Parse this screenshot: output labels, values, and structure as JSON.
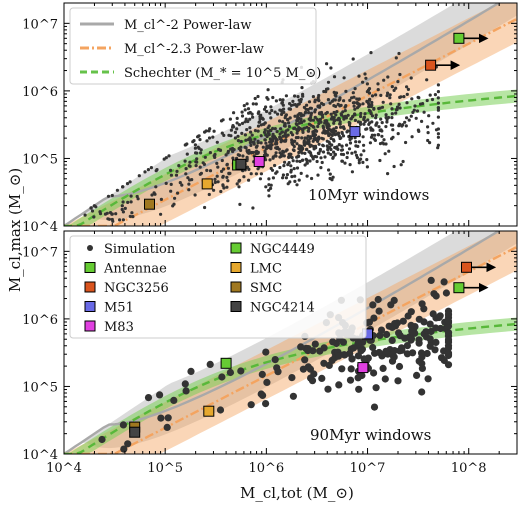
{
  "figure": {
    "xlabel": "M_cl,tot (M_⊙)",
    "ylabel": "M_cl,max (M_⊙)"
  },
  "chart_data": [
    {
      "type": "scatter",
      "annotation": "10Myr windows",
      "xscale": "log",
      "yscale": "log",
      "xlim": [
        10000,
        300000000
      ],
      "ylim": [
        10000,
        20000000
      ],
      "x_ticks": [
        "10^4",
        "10^5",
        "10^6",
        "10^7",
        "10^8"
      ],
      "y_ticks": [
        "10^4",
        "10^5",
        "10^6",
        "10^7"
      ],
      "legend": [
        {
          "name": "M_cl^-2 Power-law",
          "style": "solid",
          "color": "#a9a9a9"
        },
        {
          "name": "M_cl^-2.3 Power-law",
          "style": "dashdot",
          "color": "#f4a460"
        },
        {
          "name": "Schechter (M_* = 10^5 M_⊙)",
          "style": "dashed",
          "color": "#66c24a"
        }
      ],
      "legend_position": "top-left",
      "galaxies": [
        {
          "name": "Antennae",
          "x": 80000000,
          "y": 6000000,
          "color": "#66cc33",
          "arrow": true
        },
        {
          "name": "NGC3256",
          "x": 42000000,
          "y": 2400000,
          "color": "#d9541e",
          "arrow": true
        },
        {
          "name": "M51",
          "x": 7500000,
          "y": 250000,
          "color": "#6a6ae6",
          "arrow": false
        },
        {
          "name": "M83",
          "x": 850000,
          "y": 90000,
          "color": "#e040e0",
          "arrow": false
        },
        {
          "name": "NGC4449",
          "x": 520000,
          "y": 80000,
          "color": "#66cc33",
          "arrow": false
        },
        {
          "name": "LMC",
          "x": 260000,
          "y": 42000,
          "color": "#e6a82e",
          "arrow": false
        },
        {
          "name": "SMC",
          "x": 70000,
          "y": 21000,
          "color": "#a07820",
          "arrow": false
        },
        {
          "name": "NGC4214",
          "x": 560000,
          "y": 82000,
          "color": "#444444",
          "arrow": false
        }
      ]
    },
    {
      "type": "scatter",
      "annotation": "90Myr windows",
      "xscale": "log",
      "yscale": "log",
      "xlim": [
        10000,
        300000000
      ],
      "ylim": [
        10000,
        20000000
      ],
      "x_ticks": [
        "10^4",
        "10^5",
        "10^6",
        "10^7",
        "10^8"
      ],
      "y_ticks": [
        "10^4",
        "10^5",
        "10^6",
        "10^7"
      ],
      "legend": [
        {
          "name": "Simulation",
          "color": "#333333",
          "marker": "circle"
        },
        {
          "name": "Antennae",
          "color": "#66cc33",
          "marker": "square"
        },
        {
          "name": "NGC3256",
          "color": "#d9541e",
          "marker": "square"
        },
        {
          "name": "M51",
          "color": "#6a6ae6",
          "marker": "square"
        },
        {
          "name": "M83",
          "color": "#e040e0",
          "marker": "square"
        },
        {
          "name": "NGC4449",
          "color": "#66cc33",
          "marker": "square"
        },
        {
          "name": "LMC",
          "color": "#e6a82e",
          "marker": "square"
        },
        {
          "name": "SMC",
          "color": "#a07820",
          "marker": "square"
        },
        {
          "name": "NGC4214",
          "color": "#444444",
          "marker": "square"
        }
      ],
      "legend_position": "top-left",
      "galaxies": [
        {
          "name": "Antennae",
          "x": 80000000,
          "y": 2900000,
          "color": "#66cc33",
          "arrow": true
        },
        {
          "name": "NGC3256",
          "x": 95000000,
          "y": 5800000,
          "color": "#d9541e",
          "arrow": true
        },
        {
          "name": "M51",
          "x": 10000000,
          "y": 600000,
          "color": "#6a6ae6",
          "arrow": false
        },
        {
          "name": "M83",
          "x": 9000000,
          "y": 190000,
          "color": "#e040e0",
          "arrow": false
        },
        {
          "name": "NGC4449",
          "x": 400000,
          "y": 220000,
          "color": "#66cc33",
          "arrow": false
        },
        {
          "name": "LMC",
          "x": 270000,
          "y": 43000,
          "color": "#e6a82e",
          "arrow": false
        },
        {
          "name": "SMC",
          "x": 50000,
          "y": 25000,
          "color": "#a07820",
          "arrow": false
        },
        {
          "name": "NGC4214",
          "x": 50000,
          "y": 21000,
          "color": "#444444",
          "arrow": false
        }
      ]
    }
  ]
}
